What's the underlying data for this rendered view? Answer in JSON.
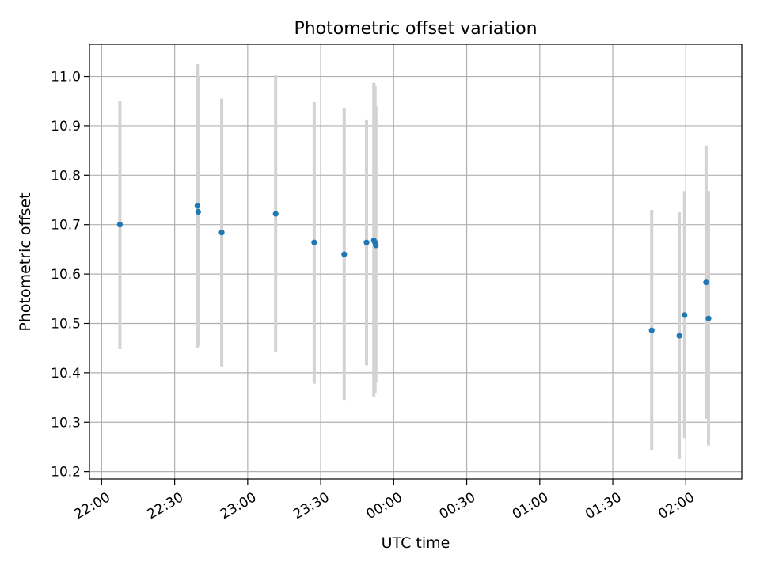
{
  "chart_data": {
    "type": "scatter",
    "title": "Photometric offset variation",
    "xlabel": "UTC time",
    "ylabel": "Photometric offset",
    "grid": true,
    "xlim": [
      "21:55",
      "02:23"
    ],
    "ylim": [
      10.185,
      11.065
    ],
    "x_ticks": [
      "22:00",
      "22:30",
      "23:00",
      "23:30",
      "00:00",
      "00:30",
      "01:00",
      "01:30",
      "02:00"
    ],
    "y_ticks": [
      "10.2",
      "10.3",
      "10.4",
      "10.5",
      "10.6",
      "10.7",
      "10.8",
      "10.9",
      "11.0"
    ],
    "colors": {
      "point": "#1f77b4",
      "errorbar": "#d3d3d3",
      "grid": "#b0b0b0"
    },
    "series": [
      {
        "points": [
          {
            "x": "22:07:30",
            "y": 10.7,
            "err_low": 10.448,
            "err_high": 10.95
          },
          {
            "x": "22:39:20",
            "y": 10.738,
            "err_low": 10.45,
            "err_high": 11.025
          },
          {
            "x": "22:39:40",
            "y": 10.726,
            "err_low": 10.455,
            "err_high": 11.0
          },
          {
            "x": "22:49:20",
            "y": 10.684,
            "err_low": 10.413,
            "err_high": 10.955
          },
          {
            "x": "23:11:30",
            "y": 10.722,
            "err_low": 10.443,
            "err_high": 11.002
          },
          {
            "x": "23:27:20",
            "y": 10.664,
            "err_low": 10.378,
            "err_high": 10.948
          },
          {
            "x": "23:39:40",
            "y": 10.64,
            "err_low": 10.345,
            "err_high": 10.935
          },
          {
            "x": "23:48:50",
            "y": 10.664,
            "err_low": 10.415,
            "err_high": 10.913
          },
          {
            "x": "23:51:50",
            "y": 10.668,
            "err_low": 10.352,
            "err_high": 10.987
          },
          {
            "x": "23:52:20",
            "y": 10.664,
            "err_low": 10.36,
            "err_high": 10.98
          },
          {
            "x": "23:52:40",
            "y": 10.658,
            "err_low": 10.38,
            "err_high": 10.94
          },
          {
            "x": "01:46:00",
            "y": 10.486,
            "err_low": 10.243,
            "err_high": 10.73
          },
          {
            "x": "01:57:20",
            "y": 10.475,
            "err_low": 10.225,
            "err_high": 10.725
          },
          {
            "x": "01:59:30",
            "y": 10.517,
            "err_low": 10.268,
            "err_high": 10.768
          },
          {
            "x": "02:08:20",
            "y": 10.583,
            "err_low": 10.307,
            "err_high": 10.86
          },
          {
            "x": "02:09:20",
            "y": 10.51,
            "err_low": 10.253,
            "err_high": 10.768
          }
        ]
      }
    ]
  }
}
